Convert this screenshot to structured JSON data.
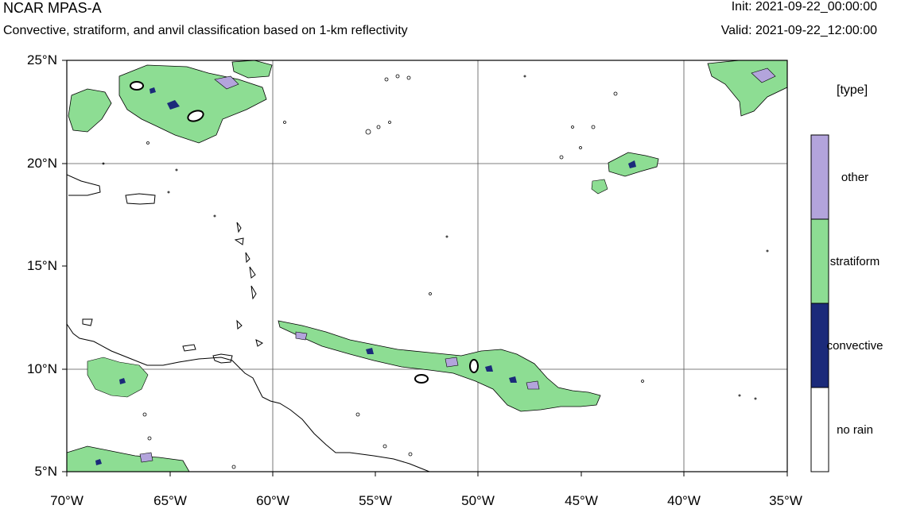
{
  "header": {
    "title": "NCAR MPAS-A",
    "subtitle": "Convective, stratiform, and anvil classification based on 1-km reflectivity",
    "init": "Init: 2021-09-22_00:00:00",
    "valid": "Valid: 2021-09-22_12:00:00"
  },
  "map": {
    "lon_range": [
      -70,
      -35
    ],
    "lat_range": [
      5,
      25
    ],
    "lat_labels": [
      "5°N",
      "10°N",
      "15°N",
      "20°N",
      "25°N"
    ],
    "lon_labels": [
      "70°W",
      "65°W",
      "60°W",
      "55°W",
      "50°W",
      "45°W",
      "40°W",
      "35°W"
    ],
    "gridlines": true,
    "coastline_color": "#000000"
  },
  "legend": {
    "title": "[type]",
    "entries": [
      {
        "label": "other",
        "color": "#b3a4dc"
      },
      {
        "label": "stratiform",
        "color": "#8ddd93"
      },
      {
        "label": "convective",
        "color": "#1b2a7a"
      },
      {
        "label": "no rain",
        "color": "#ffffff"
      }
    ]
  }
}
